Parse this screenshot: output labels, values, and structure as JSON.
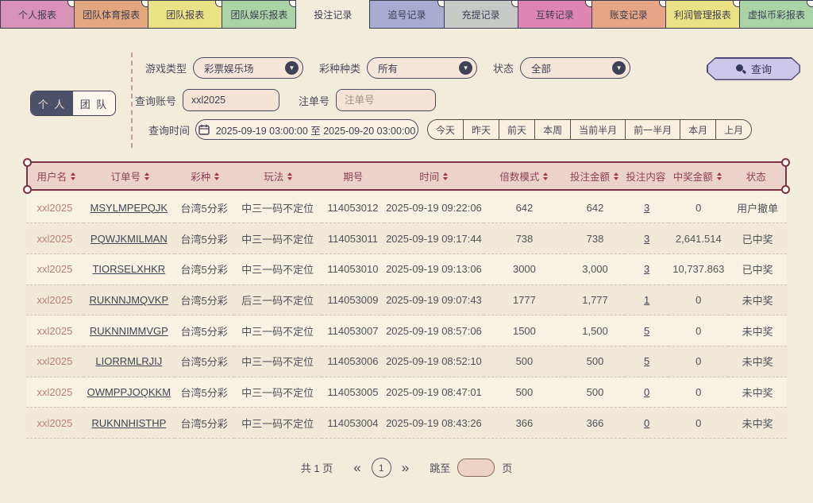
{
  "tabs": [
    {
      "label": "个人报表",
      "color": "#d892b8",
      "active": false
    },
    {
      "label": "团队体育报表",
      "color": "#e2a77f",
      "active": false
    },
    {
      "label": "团队报表",
      "color": "#ebe286",
      "active": false
    },
    {
      "label": "团队娱乐报表",
      "color": "#abd3a5",
      "active": false
    },
    {
      "label": "投注记录",
      "color": "#f2ecdb",
      "active": true
    },
    {
      "label": "追号记录",
      "color": "#a9abd3",
      "active": false
    },
    {
      "label": "充提记录",
      "color": "#c7c9c7",
      "active": false
    },
    {
      "label": "互转记录",
      "color": "#de85b4",
      "active": false
    },
    {
      "label": "账变记录",
      "color": "#e6a585",
      "active": false
    },
    {
      "label": "利润管理报表",
      "color": "#ebe286",
      "active": false
    },
    {
      "label": "虚拟币彩报表",
      "color": "#abd3a8",
      "active": false
    }
  ],
  "filters": {
    "game_type_label": "游戏类型",
    "game_type_value": "彩票娱乐场",
    "lottery_category_label": "彩种种类",
    "lottery_category_value": "所有",
    "status_label": "状态",
    "status_value": "全部",
    "search_button_label": "查询",
    "scope_personal": "个 人",
    "scope_team": "团 队",
    "account_label": "查询账号",
    "account_value": "xxl2025",
    "order_label": "注单号",
    "order_placeholder": "注单号",
    "time_label": "查询时间",
    "time_value": "2025-09-19 03:00:00 至 2025-09-20 03:00:00",
    "quick_ranges": [
      "今天",
      "昨天",
      "前天",
      "本周",
      "当前半月",
      "前一半月",
      "本月",
      "上月"
    ]
  },
  "table": {
    "columns": [
      {
        "label": "用户名",
        "sortable": true
      },
      {
        "label": "订单号",
        "sortable": true
      },
      {
        "label": "彩种",
        "sortable": true
      },
      {
        "label": "玩法",
        "sortable": true
      },
      {
        "label": "期号",
        "sortable": false
      },
      {
        "label": "时间",
        "sortable": true
      },
      {
        "label": "倍数模式",
        "sortable": true
      },
      {
        "label": "投注金额",
        "sortable": true
      },
      {
        "label": "投注内容",
        "sortable": false
      },
      {
        "label": "中奖金额",
        "sortable": true
      },
      {
        "label": "状态",
        "sortable": false
      }
    ],
    "rows": [
      {
        "username": "xxl2025",
        "order_no": "MSYLMPEPQJK",
        "lottery": "台湾5分彩",
        "play": "中三一码不定位",
        "issue": "114053012",
        "time": "2025-09-19 09:22:06",
        "multiple": "642",
        "bet_amount": "642",
        "bet_content": "3",
        "win_amount": "0",
        "status": "用户撤单"
      },
      {
        "username": "xxl2025",
        "order_no": "PQWJKMILMAN",
        "lottery": "台湾5分彩",
        "play": "中三一码不定位",
        "issue": "114053011",
        "time": "2025-09-19 09:17:44",
        "multiple": "738",
        "bet_amount": "738",
        "bet_content": "3",
        "win_amount": "2,641.514",
        "status": "已中奖"
      },
      {
        "username": "xxl2025",
        "order_no": "TIORSELXHKR",
        "lottery": "台湾5分彩",
        "play": "中三一码不定位",
        "issue": "114053010",
        "time": "2025-09-19 09:13:06",
        "multiple": "3000",
        "bet_amount": "3,000",
        "bet_content": "3",
        "win_amount": "10,737.863",
        "status": "已中奖"
      },
      {
        "username": "xxl2025",
        "order_no": "RUKNNJMQVKP",
        "lottery": "台湾5分彩",
        "play": "后三一码不定位",
        "issue": "114053009",
        "time": "2025-09-19 09:07:43",
        "multiple": "1777",
        "bet_amount": "1,777",
        "bet_content": "1",
        "win_amount": "0",
        "status": "未中奖"
      },
      {
        "username": "xxl2025",
        "order_no": "RUKNNIMMVGP",
        "lottery": "台湾5分彩",
        "play": "中三一码不定位",
        "issue": "114053007",
        "time": "2025-09-19 08:57:06",
        "multiple": "1500",
        "bet_amount": "1,500",
        "bet_content": "5",
        "win_amount": "0",
        "status": "未中奖"
      },
      {
        "username": "xxl2025",
        "order_no": "LIORRMLRJIJ",
        "lottery": "台湾5分彩",
        "play": "中三一码不定位",
        "issue": "114053006",
        "time": "2025-09-19 08:52:10",
        "multiple": "500",
        "bet_amount": "500",
        "bet_content": "5",
        "win_amount": "0",
        "status": "未中奖"
      },
      {
        "username": "xxl2025",
        "order_no": "OWMPPJOQKKM",
        "lottery": "台湾5分彩",
        "play": "中三一码不定位",
        "issue": "114053005",
        "time": "2025-09-19 08:47:01",
        "multiple": "500",
        "bet_amount": "500",
        "bet_content": "0",
        "win_amount": "0",
        "status": "未中奖"
      },
      {
        "username": "xxl2025",
        "order_no": "RUKNNHISTHP",
        "lottery": "台湾5分彩",
        "play": "中三一码不定位",
        "issue": "114053004",
        "time": "2025-09-19 08:43:26",
        "multiple": "366",
        "bet_amount": "366",
        "bet_content": "0",
        "win_amount": "0",
        "status": "未中奖"
      }
    ]
  },
  "pagination": {
    "total_label": "共 1 页",
    "prev": "«",
    "current_page": "1",
    "next": "»",
    "jump_label": "跳至",
    "unit_label": "页"
  },
  "colors": {
    "background": "#f2ecdb",
    "header_frame": "#7a3344",
    "header_bg": "#ecd3c9",
    "accent_lavender": "#cdc7ea",
    "toggle_active": "#4b5068"
  }
}
